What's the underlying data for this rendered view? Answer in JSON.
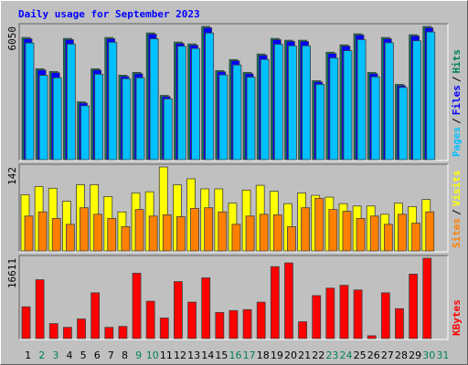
{
  "chart_data": [
    {
      "type": "bar",
      "title": "Daily usage for September 2023",
      "ylim": [
        0,
        6050
      ],
      "yticks": [
        6050
      ],
      "separator": "/",
      "series": [
        {
          "name": "Hits",
          "color": "#00805c",
          "values": [
            5549,
            4130,
            4005,
            5507,
            2628,
            4130,
            5549,
            3838,
            3963,
            5757,
            2920,
            5340,
            5257,
            6050,
            4047,
            4547,
            3963,
            4798,
            5507,
            5424,
            5424,
            3588,
            4881,
            5215,
            5716,
            3963,
            5549,
            3421,
            5674,
            6050,
            null
          ]
        },
        {
          "name": "Files",
          "color": "#0000ff",
          "values": [
            5490,
            4070,
            3950,
            5450,
            2570,
            4070,
            5490,
            3780,
            3900,
            5700,
            2860,
            5280,
            5200,
            5990,
            3990,
            4490,
            3900,
            4740,
            5450,
            5370,
            5370,
            3530,
            4820,
            5160,
            5660,
            3900,
            5490,
            3360,
            5620,
            5990,
            null
          ]
        },
        {
          "name": "Pages",
          "color": "#00c0ff",
          "values": [
            5300,
            3830,
            3720,
            5250,
            2450,
            3880,
            5330,
            3680,
            3720,
            5490,
            2760,
            5150,
            5050,
            5750,
            3850,
            4300,
            3750,
            4550,
            5240,
            5170,
            5170,
            3420,
            4620,
            4950,
            5450,
            3760,
            5310,
            3280,
            5400,
            5800,
            null
          ]
        }
      ]
    },
    {
      "type": "bar",
      "ylim": [
        0,
        142
      ],
      "yticks": [
        142
      ],
      "separator": "/",
      "series": [
        {
          "name": "Visits",
          "color": "#ffff00",
          "values": [
            95,
            109,
            106,
            84,
            112,
            112,
            92,
            66,
            98,
            100,
            142,
            112,
            122,
            105,
            105,
            81,
            103,
            111,
            101,
            80,
            98,
            94,
            91,
            80,
            76,
            76,
            62,
            81,
            75,
            87,
            null
          ]
        },
        {
          "name": "Sites",
          "color": "#ff8000",
          "values": [
            59,
            66,
            55,
            45,
            73,
            62,
            55,
            41,
            70,
            59,
            61,
            58,
            72,
            73,
            66,
            45,
            59,
            62,
            61,
            41,
            73,
            89,
            70,
            67,
            55,
            59,
            45,
            62,
            47,
            66,
            null
          ]
        }
      ]
    },
    {
      "type": "bar",
      "ylim": [
        0,
        16611
      ],
      "yticks": [
        16611
      ],
      "categories": [
        "1",
        "2",
        "3",
        "4",
        "5",
        "6",
        "7",
        "8",
        "9",
        "10",
        "11",
        "12",
        "13",
        "14",
        "15",
        "16",
        "17",
        "18",
        "19",
        "20",
        "21",
        "22",
        "23",
        "24",
        "25",
        "26",
        "27",
        "28",
        "29",
        "30",
        "31"
      ],
      "category_colors": [
        "#000000",
        "#00805c",
        "#00805c",
        "#000000",
        "#000000",
        "#000000",
        "#000000",
        "#000000",
        "#00805c",
        "#00805c",
        "#000000",
        "#000000",
        "#000000",
        "#000000",
        "#000000",
        "#00805c",
        "#00805c",
        "#000000",
        "#000000",
        "#000000",
        "#000000",
        "#000000",
        "#00805c",
        "#00805c",
        "#000000",
        "#000000",
        "#000000",
        "#000000",
        "#000000",
        "#00805c",
        "#00805c"
      ],
      "series": [
        {
          "name": "KBytes",
          "color": "#ff0000",
          "values": [
            6567,
            12169,
            3090,
            2318,
            4056,
            9464,
            2318,
            2511,
            13521,
            7726,
            4249,
            11782,
            7533,
            12555,
            5408,
            5795,
            5988,
            7533,
            14873,
            15645,
            3477,
            8885,
            10430,
            11010,
            10044,
            579,
            9464,
            6181,
            13327,
            16611,
            null
          ]
        }
      ]
    }
  ]
}
